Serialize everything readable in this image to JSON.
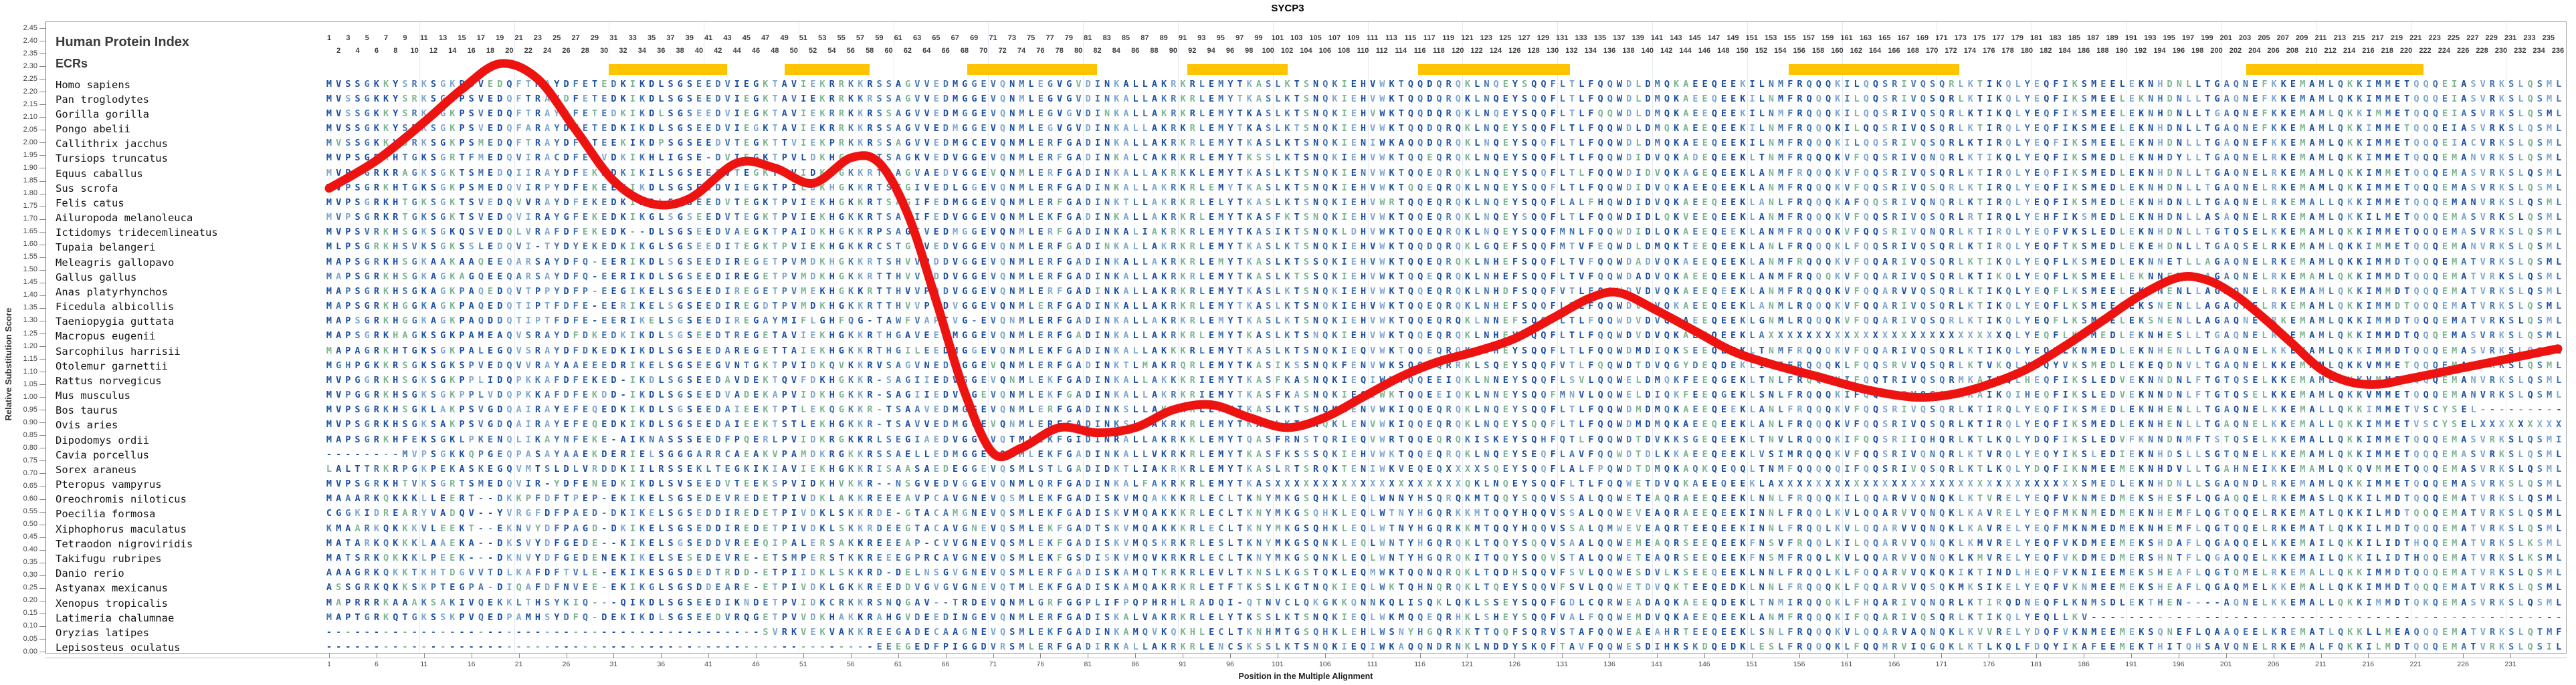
{
  "title": "SYCP3",
  "panel": {
    "human_protein_index": "Human Protein Index",
    "ecrs": "ECRs"
  },
  "y_axis": {
    "label": "Relative Substitution Score",
    "min": 0.0,
    "max": 2.45,
    "step": 0.05
  },
  "x_axis": {
    "label": "Position in the Multiple Alignment",
    "tick_start": 1,
    "tick_step": 5,
    "tick_end": 231
  },
  "colors": {
    "ecr_yellow": "#FFC400",
    "curve_red": "#ED1310",
    "seq_palette": [
      "#1C4F9F",
      "#4274AF",
      "#7FA7CD",
      "#7CB491"
    ],
    "grid": "#e2eaf2",
    "axis_text": "#444444",
    "index_text": "#3d3d3d"
  },
  "ecr_regions": [
    {
      "start": 31.0,
      "end": 42.5
    },
    {
      "start": 49.5,
      "end": 57.5
    },
    {
      "start": 68.8,
      "end": 81.5
    },
    {
      "start": 92.0,
      "end": 101.6
    },
    {
      "start": 116.3,
      "end": 131.3
    },
    {
      "start": 155.4,
      "end": 172.4
    },
    {
      "start": 203.6,
      "end": 221.3
    }
  ],
  "alignment": {
    "length": 236,
    "index_start": 1,
    "index_end": 236,
    "species": [
      {
        "name": "Homo sapiens",
        "seq": "MVSSGKKYSRKSGKPSVEDQFTRAYDFETEDKIKDLSGSEEDVIEGKTAVIEKRRKKRSSAGVVEDMGGEVQNMLEGVGVDINKALLAKRKRLEMYTKASLKTSNQKIEHVWKTQQDQRQKLNQEYSQQFLTLFQQWDLDMQKAEEQEEKILNMFRQQQKILQQSRIVQSQRLKTIKQLYEQFIKSMEELEKNHDNLLTGAQNEFKKEMAMLQKKIMMETQQQEIASVRKSLQSMLF"
      },
      {
        "name": "Pan troglodytes",
        "seq": "MVSSGKKYSRKSGKPSVEDQFTRAYDFETEDKIKDLSGSEEDVIEGKTAVIEKRRKKRSSAGVVEDMGGEVQNMLEGVGVDINKALLAKRKRLEMYTKASLKTSNQKIEHVWKTQQDQRQKLNQEYSQQFLTLFQQWDLDMQKAEEQEEKILNMFRQQQKILQQSRIVQSQRLKTIKQLYEQFIKSMEELEKNHDNLLTGAQNEFKKEMAMLQKKIMMETQQQEIASVRKSLQSMLF"
      },
      {
        "name": "Gorilla gorilla",
        "seq": "MVSSGKKYSRKSGKPSVEDQFTRAYDFETEDKIKDLSGSEEDVIEGKTAVIEKRRKKRSSAGVVEDMGGEVQNMLEGVGVDINKALLAKRKRLEMYTKASLKTSNQKIEHVWKTQQDQRQKLNQEYSQQFLTLFQQWDLDMQKAEEQEEKILNMFRQQQKILQQSRIVQSQRLKTIKQLYEQFIKSMEELEKNHDNLLTGAQNEFKKEMAMLQKKIMMETQQQEIASVRKSLQSMLF"
      },
      {
        "name": "Pongo abelii",
        "seq": "MVSSGKKYSRKSGKPSVEDQFARAYDFETEDKIKDLSGSEEDVIEGKTAVIEKRRKKRSSAGVVEDMGGEVQNMLEGVGVDINKALLAKRKRLEMYTKASLKTSNQKIEHVWKTQQDQRQKLNQEYSQQFLTLFQQWDLDMQKAEEQEEKILNMFRQQQKILQQSRIVQSQRLKTIRQLYEQFIKSMEELEKNHDNLLTGAQNEFKKEMAMLQKKIMMETQQQEIASVRKSLQSMLF"
      },
      {
        "name": "Callithrix jacchus",
        "seq": "MVSSGKKYSRKSGKPSMEDQFTRAYDFETEEKIKDPSGSEEDVTEGKTTVIEKPRKKRSSAGVVEDMGCEVQNMLERFGADINKALLAKRKRLEMYTKASLKTSNQKIENIWKAQQDQRQKLNQEYSQQFLTLFQQWDLDMQKAEEQEEKILNMFRQQQKILQQSRIVQSQRLKTIRQLYEQFIKSMEELEKNHDNLLTGAQNEFKKEMAMLQKKIMMETQQQEIACVRKSLQSMLF"
      },
      {
        "name": "Tursiops truncatus",
        "seq": "MVPSGRKHTGKSGRTFMEDQVIRACDFEKVDKIKHLIGSE-DVIEGKTPVLDKHGKKRTSAGKVEDVGGEVQNMLERFGADINKALCAKRKRLEMYTKSSLKTSNQKIEHVWKTQQEQRQKLNQEYSQQFLTLFQQWDIDVQKADEQEEKLTNMFRQQQKVFQQSRIVQNQRLKTIKQLYEQFIKSMEDLEKNHDYLLTGAQNELRKEMAMLQKKIMMETQQQEMANVRKSLQSMLF"
      },
      {
        "name": "Equus caballus",
        "seq": "MVPSGRKRAGKSGKTSMEDQIIRAYDFEKDDKIKILSGSEEEVTEGKTPVIDKHGKKRTSAGVAEDVGGEVQNMLERFGADINKALLAKRKKLEMYTKASLKTSNQKIENVWKTQQEQRQKLNQEYSQQFLTLFQQWDIDVQKAGEQEEKLANMFRQQQKVFQQSRIVQSQRLKTIRQLYEQFIKSMEDLEKNHDNLLTGAQNELRKEMAMLQKKIMMETQQQEMASVRKSLQSMLF"
      },
      {
        "name": "Sus scrofa",
        "seq": "MVPSGRKHTGKSGKPSMEDQVIRPYDFEKEEKIKDLSGSEEDVIEGKTPILDKHGKKRTSTGIVEDLGGEVQNMLERFGADINKALLAKRKRLEMYTKASLKTSNQKIEHVWKTQQEQRQKLNQEYSQQFLTLFQQWDIDVQKAEEQEEKLANMFRQQQKVFQQSRIVQSQRLKTIRQLYEQFIKSMEDLEKNHDNLLTGAQNELRKEMAMLQKKIMMETQQQEMASVRKSLQSMLF"
      },
      {
        "name": "Felis catus",
        "seq": "MVPSGRKHTGKSGKTSVEDQVVRAYDFEKEDKIKDLSGSEEDVTEGKTPVIEKHGKKRTSAGIFEDMGGEVQNMLERFGADINKTLLAKRKRLELYTKASLKTSNQKIEHVWRTQQEQRQKLNQEYSQQFLALFHQWDIDVQKAEEQEEKLANLFRQQQKAFQQSRIVQNQRLKTIRQLYEQFIKSMEDLEKNHDNLLTGAQNELRKEMALLQKKIMMETQQQEMANVRKSLQSMLF"
      },
      {
        "name": "Ailuropoda melanoleuca",
        "seq": "MVPSGRKRTGKSGKTSVEDQVIRAYGFEKEDKIKGLSGSEEDVTEGKTPVIEKHGKKRTSAAIFEDVGGEVQNMLEKFGADINKALLAKRKRLEMYTKASFKTSNQKIEHVWKTQQEQRQKLNQEYSQQFLTLFQQWDIDLQKVEEQEEKLANMFRQQQKVFQQSRIVQSQRLRTIRQLYEHFIKSMEDLEKNHDNLLASAQNELRKEMAMLQKKILMETQQQEMASVRKSLQSMLF"
      },
      {
        "name": "Ictidomys tridecemlineatus",
        "seq": "MVPSVRKHSGKSGKQSVEDQLVRAFDFEKEDK--DLSGSEEDVAEGKTPAIDKHGKKRPSAGIVEDMGGEVQNMLERFGADINKALIAKRKRLEMYTKASIKTSNQKLDHVWKTQQEQRQKLNQEYSQQFMNLFQQWDIDLQKAEEQEEKLANMFRQQQKVFQQSRIVQNQRLKTIRQLYEQFVKSLEDLEKNHDNLLTGTQSELKKEMAMLQKKIMMETQQQEMASVRKSLQSMLF"
      },
      {
        "name": "Tupaia belangeri",
        "seq": "MLPSGRKHSVKSGKSSLEDQVI-TYDYEKEDKIKGLSGSEEDITEGKTPVIEKHGKKRCSTGLVEDVGGEVQNMLERFGADINKALLAKRKRLEMYTKASLKTSNQKIEHVWKTQQDQRQKLGQEFSQQFMTVFEQWDLDMQKTEEQEEKLANLFRQQQKLFQQSRIVQSQRLKTIRQLYEQFTKSMEDLEKEHDNLLTGAQSELRKEMAMLQKKIMMETQQQEMANVRKSLQSMLF"
      },
      {
        "name": "Meleagris gallopavo",
        "seq": "MAPSGRKHSGKAAKAAQEEQARSAYDFQ-EERIKDLSGSEEDIREGETPVMDKHGKKRTSHVVPDDVGGEVQNMLERFGADINKALLAKRKRLEMYTKASLKTSSQKIEHVWKTQQEQRQKLNHEFSQQFLTVFQQWDADVQKAEEQEEKLANMFRQQQKVFQQARIVQSQRLKTIKQLYEQFLKSMEDLEKNNETLLAGAQNELRKEMAMLQKKIMMDTQQQEMATVRKSLQSMLF"
      },
      {
        "name": "Gallus gallus",
        "seq": "MAPSGRKHSGKAGKAGQEEQARSAYDFQ-EERIKDLSGSEEDIREGETPVMDKHGKKRTTHVVPDDVGGEVQNMLERFGADINKALLAKRKRLEMYTKASLKTSSQKIEHVWKTQQEQRQKLNHEFSQQFLTVFQQWDADVQKAEEQEEKLANMFRQQQKVFQQARIVQSQRLKTIKQLYEQFLKSMEELEKNNENLLAGAQNELRKEMAMLQKKIMMDTQQQEMATVRKSLQSMLF"
      },
      {
        "name": "Anas platyrhynchos",
        "seq": "MAPSGRKHSGKAGKPAQEDQVTPPYDFP-EEGIKELSGSEEDIREGETPVMEKHGKKRTTHVVPDDVGGEVQNMLERFGADINKALLAKRKRLEMYTKASLKTSNQKIEHVWKTQQEQRQKLNHDFSQQFVTLFQQWDVDVQKAEEQEEKLANMFRQQQKVFQQARVVQSQRLKTIKQLYEQFLKSMEELEKTNENLLAGAQNELRKEMAMLQKKIMMDTQQQEMATVRKSLQSMLF"
      },
      {
        "name": "Ficedula albicollis",
        "seq": "MAPSGRKHGGKAGKPAQEDQTIPTFDFE-EERIKELSGSEEDIREGDTPVMDKHGKKRTTHVVPDDVGGEVQNMLERFGADINKALLAKRKRLEMYTKASLKTSNQKIEHVWKTQQEQRQKLNHEFSQQFLTLFQQWDVDVQKAEEQEEKLANMLRQQQKVFQQARIVQSQRLKTIKQLYEQFLKSMEELEKSNENLLAGAQNELRKEMAMLQKKIMMDTQQQEMATVRKSLQSMLF"
      },
      {
        "name": "Taeniopygia guttata",
        "seq": "MAPSGRKHGGKAGKPAQDDQTIPTFDFE-EERIKELSGSEEDIREGAYMIFLGHFQG-TAWFVAPTVG-EVQNMLERFGADINKALLAKRKRLEMYTKASLKTSNQKIEHVWKTQQEQRQKLNNEFSQQFLTLFQQWDVDVQKAEEQEEKLGNMLRQQQKVFQQARIVQSQRLKTIKQLYEQFLKSMEELEKSNENLLAGAQNELRKEMAMLQKKIMMDTQQQEMATVRKSLQSMLF"
      },
      {
        "name": "Macropus eugenii",
        "seq": "MAPSGRKHAGKSGKPAMEAQVSRAYDFDKEDKIKDLSGSEEDTREGETAVIEKHGKKRTHGAVEEDMGGEVQNMLERFGADINKALLAKRKRLEMYTKASLKTSNQKIEHVWKTQQEQRQKLNHEYSQQFLTLFQQWDVDVQKAEEQEEKLAXXXXXXXXXXXXXXXXXXXXXXXXXQLYEQFLKNMEDLEKNHESLLTGAQNELRKEMAMLQKKIMMDTQQQEMASVRKSLQSMLF"
      },
      {
        "name": "Sarcophilus harrisii",
        "seq": "MAPAGRKHTGKSGKPALEGQVSRAYDFDKEDKIKDLSGSEEDAREGETTAIEKHGKKRTHGILEEDMGGEVQNMLEKFGADINKALLAKKKRLEMYTKASLKTSNQKIEQVWKTQQEQRQKLSHEYSQQFLTLFQQWDMDIQKSEEQEEKLTNMFRQQQKVFQQARIVQSQRLKTIKQLYEQFLKNMEDLEKNHENLLTGAQNELKKEMAMLQKKIMMDTQQQEMASVRKSLQSMLF"
      },
      {
        "name": "Otolemur garnettii",
        "seq": "MGHPGKKRSGKSGKSPVEDQVVRAYAAEEEDRIKELSGSEEGVNTGKTPVIDKQVKKRVSAGVNEDVGGEVQNMLERFGADINKTLMAKRQRLEMYTKASIKSSNQKFENVWKSQQEQRRKLSQEYSQQFVTLFQQWDTDVQGYDEQDEKLISIFRQQQKLFQQSRVVQSQRLKTVKQLYEQYVKSMEDLEKEQDNVLTGAQNELKKEMAMLQKKVMMETQQQEMASVRKSLQSMLF"
      },
      {
        "name": "Rattus norvegicus",
        "seq": "MVPGGRKHSGKSGKPPLIDQPKKAFDFEKED-IKDLSGSEEDAVDEKTQVFDKHGKKR-SAGIIEDVGGEVQNMLEKFGADINKALLAKKKRIEMYTKASFKASNQKIEQIWKTQQEEIQKLNNEYSQQFLSVLQQWELDMQKFEEQGEKLTNLFRQQQKIFQQTRIVQSQRMKAIKQLHEQFIKSLEDVEKNNDNLFTGTQSELKKEMAMLQKKVMMETQQQEMANVRKSLQSMLF"
      },
      {
        "name": "Mus musculus",
        "seq": "MVPGGRKHSGKSGKPPLVDQPKKAFDFEKDD-IKDLSGSEEDVADEKAPVIDKHGKKR-SAGIIEDVGGEVQNMLEKFGADINKALLAKRKRIEMYTKASFKASNQKIEQIWKTQQEEIQKLNNEYSQQFMNVLQQWELDIQKFEEQGEKLSNLFRQQQKIFQQSRIVQSQRMKAIKQIHEQFIKSLEDVEKNNDNLFTGTQSELKKEMAMLQKKVMMETQQQEMANVRKSLQSMLF"
      },
      {
        "name": "Bos taurus",
        "seq": "MVPSGRKHSGKLAKPSVGDQAIRAYEFEQEDKIKDLSGSEEDAIEEKTPTLEKQGKKR-TSAAVEDMGGEVQNMLERFGADINKSLLAKRKRLEMYTKASLKTSNQKLENVWKIQQEQRQKLNQEYSQQFLTLFQQWDMDMQKAEEQEEKLANLFRQQQKVFQQSRIVQSQRLKTIRQLYEQFIKSMEDLEKNHENLLTGAQNELKKEMALLQKKIMMETVSCYSEL----------"
      },
      {
        "name": "Ovis aries",
        "seq": "MVPSGRKHSGKSAKPSVGDQAIRAYEFEQEDKIKDLSGSEEDAIEEKTSTLEKHGKKR-TSAVVEDMGGEVQNMLERFGADINKSLLAKRKRLEMYTKASLKTSNQKLENVWKIQQEQRQKLNQEYSQQFLTLFQQWDMDMQKAEEQEEKLANLFRQQQKVFQQSRIVQSQRLKTIRQLYEQFIKSMEDLEKNHENLLTGAQNELKKEMALLQKKIMMETVSCYSELXXXXXXXXXX"
      },
      {
        "name": "Dipodomys ordii",
        "seq": "MAPSGRKHFEKSGKLPKENQLIKAYNFEKE-AIKNASSSEEDFPQERLPVIDKRGKKRLSEGIAEDVGGEVQTMLEKFGIDINRALLAKRKKLEMYTQASFRNSTQRIEQVWRTQQEQRQKISKEYSQHFQTLFQQWDTDVKKSGEQEEKLTNVLRQQQKIFQQSRIIQHQRLKTLKQLYDQFIKSLEDVFKNNDNMFTSTQSELKKEMALLQKKIMMETQQQEMASVRKSLQSMIF"
      },
      {
        "name": "Cavia porcellus",
        "seq": "--------MVPSGKKQPGEQPASAYAAEKDERIELSGGGARRCAEAKVPAMDKRGKKRSSAELLEDMGGEVQNMLEKFGADINKALLVKRKRLEMYTKASFKSSSQKIEHVWKTQQEQRQKLNQEYSEQFLAVFQQWDTDLKKAEEQEEKLVSIMRQQQKVFQQSRIVQNQRLKTVRQLYEQYIKSLEDIEKNHDSLLSGTQNELKKEMAMLQKKIMMETQQQEMASVRKSLQSMLL"
      },
      {
        "name": "Sorex araneus",
        "seq": "LALTTRKRPGKPEKASKEGQVMTSLDLVRDDKIILRSSEKLTEGKIKIAVIEKHGKKRISAASAEDEGGEVQSMLSTLGADIDKTLIAKRKRLEMYTKASLRTSRQKTENIWKVEQEQXXXXSQEYSQQFLALFPQWDTDMQKAQKQEQQLTNMFQQQQQIFQQSRIVQSQRLKTLKQLYDQFIKNMEEMEKNHDVLLTGAHNEIKKEMAMLQKQVMMETQQQEMASVRKSLQSMLF"
      },
      {
        "name": "Pteropus vampyrus",
        "seq": "MVPSGRKHTVKSGRTSMEDQVIR-YDFENEDKIKDLSVSEEDVTEEKSPVIDKHVKKR--NSGVEDVGGEVQNMLQRFGADINKALFAKRKRLEMYTKASXXXXXXXXXXXXXXXXXXXXQKLNQEYSQQFLTLFQQWETDVQKAEEQEEKLAXXXXXXXXXXXXXXXXXXXXXXXXXXXXXXXXSMEDLEKNHDNLLSGAQNDLRKEMAMLQKKIMMETQQQEMASVRKSLQSMLF"
      },
      {
        "name": "Oreochromis niloticus",
        "seq": "MAAARKQKKKLLEERT--DKKPFDFTPEP-EKIKELSGSEDEVREDETPIVDKLAKKREEEAVPCAVGNEVQSMLEKFGADISKVMQAKKKRLECLTKNYMKGSQHKLEQLWNNYHSQRQKMTQQYSQQVSSALQQWETEAQRAEEQEEKLNNLFRQQQKILQQARVVQNQKLKTVRELYEQFVKNMEDMEKSHESFLQGAQQELRKEMASLQKKILMDTQQQEMATVRKSLQSMLF"
      },
      {
        "name": "Poecilia formosa",
        "seq": "CGGKIDREARYVADQV--YVRGFDFPAED-DKIKELSGSEDDIREDETPIVDKLSKKRDE-GTACAMGNEVQSMLEKFGADISKVMQAKKKRLECLTKNYMKGSQHKLEQLWTNYHGQRKKMTQQYHQQVSSALQQWEVEAQRAEEQEEKINNLFRQQLKVLQQARVVQNQKLKAVRELYEQFMKNMEDMEKNHEMFLQGTQQELRKEMATLQKKILMDTQQQEMATVRKSLQSMLF"
      },
      {
        "name": "Xiphophorus maculatus",
        "seq": "KMAARKQKKKVLEEKT--EKNVYDFPAGD-DKIKELSGSEDDIREDETPIVDKLSKKRDEEGTACAVGNEVQSMLEKFGADTSKVMQAKKKRLECLTKNYMKGSQHKLEQLWTNYHGQRKKMTQQYHQQVSSALQMWEVEAQRTEEQEEKINNLFRQQLKVLQQARVVQNQKLKAVRELYEQFMKNMEDMEKNHEMFLQGTQQELRKEMATLQKKILMDTQQQEMATVRKSLQSMLF"
      },
      {
        "name": "Tetraodon nigroviridis",
        "seq": "MATARKQKKKLAAEKA--DKSVYDFGEDE--KIKELSGSEDDVREEQIPALERSAKKREEEAP-CVVGNEVQSMLEKFGADISKVMQSKRKRLESLTKNYMKGSQNKLEQLWNTYHGQRQKLTQQYSQQVSAALQQWEMEAQRSEEQEEKFNSVFRQQLKILQQARVVQNQKLKMVRELYEQFVKDMEEMEKSHDAFLQGAQQELKKEMAILQKKILIDTHQQEMATVRKSLKSMLF"
      },
      {
        "name": "Takifugu rubripes",
        "seq": "MATSRKQKKKLPEEK---DKNVYDFGEDENEKIKELSESEDEVRE-ETSMPERSTKKREEEGPRCAVGNEVQSMLEKFGSDISKVMQVKRKRLECLTKNYMKGSQNKLEQLWNTYHGQRQKITQQYSQQVSTALQQWETEAQRSEEQEEKFNSMFRQQLKVLQQARVVQNQKLKMVRELYEQFVKDMEDMERSHNTFLQGAQQELKKEMAILQKKILIDTHQQEMATVRKSLKSMLF"
      },
      {
        "name": "Danio rerio",
        "seq": "AAAGRKQKKTKHTDGVVTDLKAFDFTVLE-EKIKESGSDEDTRDD-ETPIIDKLSKKRD-DELNSGVGNEVQSMLERFGADISKAMQTKRKRLEVLTKNSLKGSTQKLEQMWKTQQNQRQKLTQDHSQQVFSVLQQWESDVLKSEEQEEKLNNLFRQQLKLFQQARVVQKQKIKTINDLHEQFVKNIEEMEKSHEAFLQGTQMELRKEMALLQKKIMMDTQQQEMATVRKSLQSMLF"
      },
      {
        "name": "Astyanax mexicanus",
        "seq": "ASSGRKQKKSKPTEGPA-DIQAFDFNVEE-EKIKGLSGSDDEARE-ETPIVDKLGKKREEDDVGVGVGNEVQTMLEKFGADISKAMQAKRKRLETFTKSSLKGTNQKIEQLWKTQHNQRQKLTQEYSQQVFSVLQQWETDVQKTEEQEDKLNNLFRQQQKLFQQARVVQSQKMKSIKELYEQFVKNMEEMEKSHEAFLQGAQMELKKEMALLQKKIMMDTQQQEMATVRKSLQSMLF"
      },
      {
        "name": "Xenopus tropicalis",
        "seq": "MAPRRRKAAAKSAKIVQEKKLTHSYKIQ---QIKDLSGSEEDIKNDETPVIDKCRKKRSNQGAV--TRDEVQNMLGRFGGPLIFPQPHRHLRADQI-QTNVCLQKGKKQNNKQLISQKLQKLSSEYSQQFGDLCQRWEADAQKAEEQDEKLTNMIRQQQKLFHQARIVQNQRLKTIRQDNEQFLKNMSDLEKTHEN----AQNELKKEMALLQKKIMMDTQKQEMASVRKSLQSMLF"
      },
      {
        "name": "Latimeria chalumnae",
        "seq": "MAPTGRKQTGKSSKPVQEDPAMHSYDFQ-DEKIKDLSGSEEDVRQGETPVVDKHAKKRAHGVDEEDINGEVQNMLERFGADISKALVAKRKRLELYTKSSLKTSNQKIEQLWKMQQEQRHKLSHEYSQQFVALFQQWEMDVQKAEEQEEKLANMFRQQQKIFQQARIVQSQRLKTIKQLYEQLLKV---------------------------------------------------"
      },
      {
        "name": "Oryzias latipes",
        "seq": "----------------------------------------------SVRKVEKVAKKREEGADECAAGNEVQSMLEKFGADINKAMQVKQKHLECLTKNHMTGSQHKLEHLWSNYHGQRKKTTQQFSQRVSTAFQQWEAEAHRTEEQEEKLSNLFRQQQKVLQQARVAQNQKLKVVRELYDQFVKNMEEMEKSQNEFLQAAQEELKREMATLQKKLLMEAQQQEMATVRKSLQTMFF"
      },
      {
        "name": "Lepisosteus oculatus",
        "seq": "----------------------------------------------------------EEEGEDFPIGGDVRSMLERFGADIRKALLAKRKRLENCSKSSLKTSNQKIEQIWKAQQNDRNKLNDDYSKQFTAVFQQWESDIHKSKDQEDKLESLFRQQQKLFQQMRVIQGQKLKTLKQLFDQYIKAFEEMEKTHITQHSAVQNELRKEMALFQKKILMDTQQQEMATVRKSLQSILM"
      }
    ]
  },
  "chart_data": {
    "type": "line",
    "title": "SYCP3",
    "xlabel": "Position in the Multiple Alignment",
    "ylabel": "Relative Substitution Score",
    "xlim": [
      1,
      236
    ],
    "ylim": [
      0,
      2.45
    ],
    "grid": false,
    "legend": "none",
    "series": [
      {
        "name": "Relative Substitution Score",
        "color": "#ED1310",
        "points": [
          [
            1,
            1.82
          ],
          [
            6,
            1.93
          ],
          [
            11,
            2.08
          ],
          [
            15,
            2.21
          ],
          [
            19,
            2.31
          ],
          [
            23,
            2.25
          ],
          [
            27,
            2.05
          ],
          [
            31,
            1.85
          ],
          [
            35,
            1.76
          ],
          [
            39,
            1.78
          ],
          [
            44,
            1.92
          ],
          [
            48,
            1.9
          ],
          [
            52,
            1.84
          ],
          [
            56,
            1.94
          ],
          [
            59,
            1.92
          ],
          [
            62,
            1.72
          ],
          [
            65,
            1.38
          ],
          [
            68,
            1.02
          ],
          [
            71,
            0.78
          ],
          [
            74,
            0.8
          ],
          [
            78,
            0.88
          ],
          [
            82,
            0.86
          ],
          [
            86,
            0.88
          ],
          [
            90,
            0.95
          ],
          [
            94,
            0.97
          ],
          [
            98,
            0.92
          ],
          [
            102,
            0.88
          ],
          [
            106,
            0.92
          ],
          [
            110,
            1.0
          ],
          [
            114,
            1.08
          ],
          [
            118,
            1.14
          ],
          [
            122,
            1.18
          ],
          [
            126,
            1.23
          ],
          [
            130,
            1.31
          ],
          [
            134,
            1.39
          ],
          [
            137,
            1.41
          ],
          [
            141,
            1.34
          ],
          [
            145,
            1.26
          ],
          [
            149,
            1.18
          ],
          [
            153,
            1.13
          ],
          [
            158,
            1.08
          ],
          [
            163,
            1.03
          ],
          [
            168,
            1.0
          ],
          [
            172,
            1.01
          ],
          [
            176,
            1.05
          ],
          [
            180,
            1.11
          ],
          [
            184,
            1.2
          ],
          [
            188,
            1.3
          ],
          [
            192,
            1.4
          ],
          [
            196,
            1.47
          ],
          [
            199,
            1.46
          ],
          [
            202,
            1.4
          ],
          [
            205,
            1.31
          ],
          [
            208,
            1.21
          ],
          [
            211,
            1.11
          ],
          [
            214,
            1.06
          ],
          [
            217,
            1.05
          ],
          [
            220,
            1.07
          ],
          [
            224,
            1.1
          ],
          [
            228,
            1.13
          ],
          [
            232,
            1.16
          ],
          [
            236,
            1.19
          ]
        ]
      }
    ],
    "ecr_regions_positions": [
      [
        31,
        42.5
      ],
      [
        49.5,
        57.5
      ],
      [
        68.8,
        81.5
      ],
      [
        92,
        101.6
      ],
      [
        116.3,
        131.3
      ],
      [
        155.4,
        172.4
      ],
      [
        203.6,
        221.3
      ]
    ]
  }
}
